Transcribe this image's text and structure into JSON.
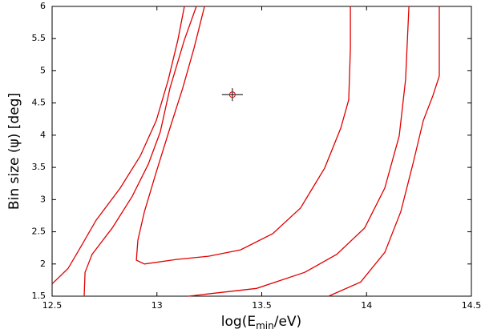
{
  "chart_data": {
    "type": "contour",
    "x_label": {
      "prefix": "log(E",
      "sub": "min",
      "suffix": "/eV)"
    },
    "y_label": "Bin size (ψ) [deg]",
    "xlim": [
      12.5,
      14.5
    ],
    "ylim": [
      1.5,
      6
    ],
    "xticks": [
      12.5,
      13,
      13.5,
      14,
      14.5
    ],
    "yticks": [
      1.5,
      2,
      2.5,
      3,
      3.5,
      4,
      4.5,
      5,
      5.5,
      6
    ],
    "grid": false,
    "series": [
      {
        "color": "#e00000",
        "x": [
          12.5,
          12.576,
          12.634,
          12.71,
          12.825,
          12.921,
          12.997,
          13.054,
          13.1,
          13.131,
          null,
          13.819,
          13.972,
          14.087,
          14.163,
          14.221,
          14.271,
          14.316,
          14.347,
          14.347
        ],
        "y": [
          1.69,
          1.93,
          2.25,
          2.68,
          3.18,
          3.68,
          4.23,
          4.86,
          5.48,
          6,
          null,
          1.5,
          1.72,
          2.18,
          2.81,
          3.55,
          4.23,
          4.61,
          4.92,
          6
        ]
      },
      {
        "color": "#e00000",
        "x": [
          12.653,
          12.657,
          12.691,
          12.787,
          12.882,
          12.959,
          13.016,
          13.062,
          13.131,
          13.188,
          null,
          13.15,
          13.475,
          13.705,
          13.858,
          13.991,
          14.087,
          14.156,
          14.186,
          14.202
        ],
        "y": [
          1.5,
          1.87,
          2.15,
          2.56,
          3.05,
          3.55,
          4.05,
          4.73,
          5.48,
          6,
          null,
          1.5,
          1.62,
          1.87,
          2.15,
          2.56,
          3.18,
          3.99,
          4.86,
          6
        ]
      },
      {
        "color": "#e00000",
        "x": [
          13.227,
          13.177,
          13.123,
          13.062,
          12.997,
          12.94,
          12.909,
          12.902,
          12.94,
          13.093,
          13.246,
          13.399,
          13.552,
          13.685,
          13.8,
          13.877,
          13.915,
          13.923,
          13.923
        ],
        "y": [
          6,
          5.35,
          4.73,
          4.11,
          3.43,
          2.81,
          2.37,
          2.06,
          2.0,
          2.07,
          2.12,
          2.22,
          2.47,
          2.87,
          3.49,
          4.11,
          4.55,
          5.35,
          6
        ]
      }
    ],
    "point": {
      "x": 13.36,
      "y": 4.63,
      "xerr": 0.05,
      "yerr": 0.1,
      "color": "#000000"
    }
  }
}
